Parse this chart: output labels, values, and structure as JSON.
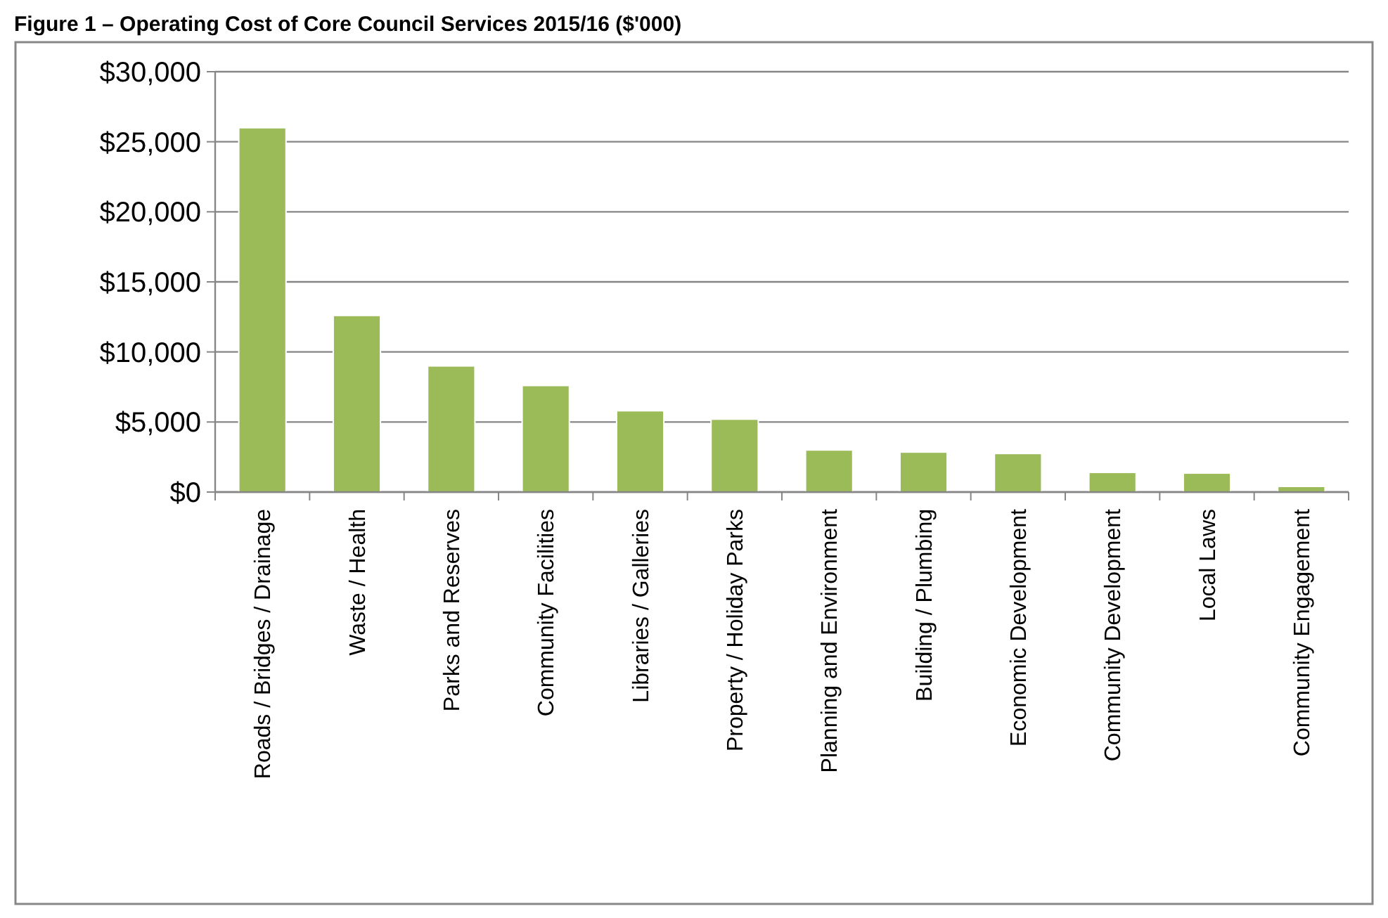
{
  "chart_data": {
    "type": "bar",
    "title": "Figure 1 – Operating Cost of Core Council Services 2015/16 ($'000)",
    "categories": [
      "Roads / Bridges / Drainage",
      "Waste / Health",
      "Parks and Reserves",
      "Community Facilities",
      "Libraries / Galleries",
      "Property / Holiday Parks",
      "Planning and Environment",
      "Building / Plumbing",
      "Economic Development",
      "Community Development",
      "Local Laws",
      "Community Engagement"
    ],
    "values": [
      26000,
      12600,
      9000,
      7600,
      5800,
      5200,
      3000,
      2850,
      2750,
      1400,
      1350,
      400
    ],
    "color": "#9bbb59",
    "ylim": [
      0,
      30000
    ],
    "yticks": [
      {
        "value": 0,
        "label": "$0"
      },
      {
        "value": 5000,
        "label": "$5,000"
      },
      {
        "value": 10000,
        "label": "$10,000"
      },
      {
        "value": 15000,
        "label": "$15,000"
      },
      {
        "value": 20000,
        "label": "$20,000"
      },
      {
        "value": 25000,
        "label": "$25,000"
      },
      {
        "value": 30000,
        "label": "$30,000"
      }
    ],
    "grid": "y"
  }
}
